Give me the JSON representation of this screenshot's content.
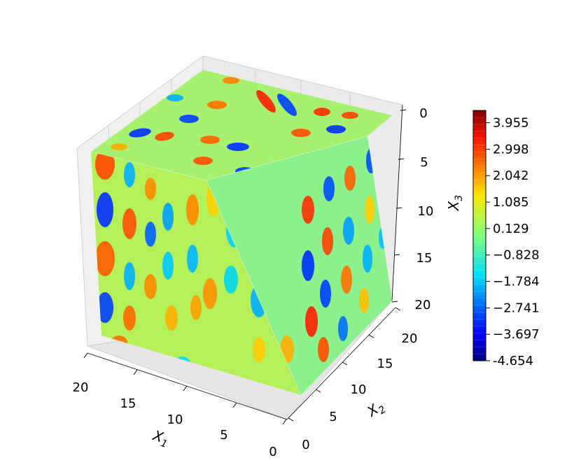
{
  "chart_data": {
    "type": "heatmap",
    "title": "",
    "xlabel": "X1",
    "ylabel": "X2",
    "zlabel": "X3",
    "axes": {
      "x": {
        "label": "X1",
        "ticks": [
          0,
          5,
          10,
          15,
          20
        ],
        "range": [
          0,
          20
        ]
      },
      "y": {
        "label": "X2",
        "ticks": [
          0,
          5,
          10,
          15,
          20
        ],
        "range": [
          0,
          20
        ]
      },
      "z": {
        "label": "X3",
        "ticks": [
          0,
          5,
          10,
          15,
          20
        ],
        "range": [
          0,
          20
        ],
        "inverted": true
      }
    },
    "colorbar": {
      "colormap": "jet",
      "min": -4.654,
      "max": 4.4,
      "tick_labels": [
        "3.955",
        "2.998",
        "2.042",
        "1.085",
        "0.129",
        "−0.828",
        "−1.784",
        "−2.741",
        "−3.697",
        "-4.654"
      ],
      "tick_values": [
        3.955,
        2.998,
        2.042,
        1.085,
        0.129,
        -0.828,
        -1.784,
        -2.741,
        -3.697,
        -4.654
      ]
    },
    "grid": true,
    "surfaces": [
      "front face X2=0",
      "left face X1=20",
      "top face X3=0",
      "cutaway cube faces"
    ]
  }
}
